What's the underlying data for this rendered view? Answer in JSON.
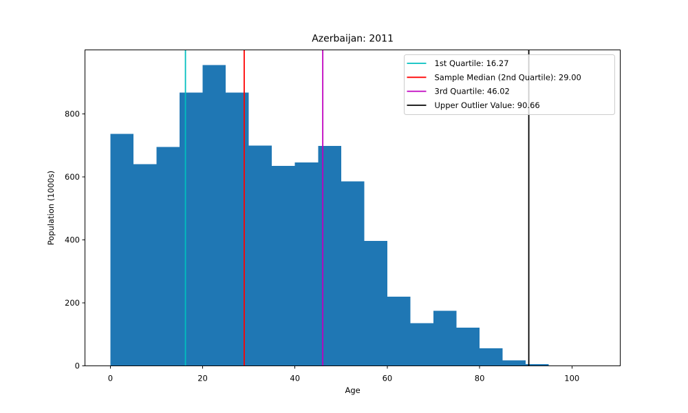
{
  "figure": {
    "background": "#ffffff",
    "text_color": "#000000"
  },
  "chart_data": {
    "type": "bar",
    "subtype": "histogram",
    "title": "Azerbaijan: 2011",
    "xlabel": "Age",
    "ylabel": "Population (1000s)",
    "bar_color": "#1f77b4",
    "bin_edges": [
      0,
      5,
      10,
      15,
      20,
      25,
      30,
      35,
      40,
      45,
      50,
      55,
      60,
      65,
      70,
      75,
      80,
      85,
      90,
      95,
      100
    ],
    "values": [
      737,
      641,
      695,
      868,
      955,
      868,
      700,
      635,
      646,
      698,
      586,
      397,
      220,
      136,
      175,
      121,
      56,
      17,
      5,
      1
    ],
    "xticks": [
      0,
      20,
      40,
      60,
      80,
      100
    ],
    "yticks": [
      0,
      200,
      400,
      600,
      800
    ],
    "xlim": [
      -5.5,
      110.5
    ],
    "ylim": [
      0,
      1003
    ],
    "grid": false,
    "legend_position": "upper right",
    "legend_border_color": "#cccccc",
    "vlines": [
      {
        "name": "q1",
        "x": 16.27,
        "color": "#00bfbf",
        "label": "1st Quartile: 16.27"
      },
      {
        "name": "median",
        "x": 29.0,
        "color": "#ff0000",
        "label": "Sample Median (2nd Quartile): 29.00"
      },
      {
        "name": "q3",
        "x": 46.02,
        "color": "#bf00bf",
        "label": "3rd Quartile: 46.02"
      },
      {
        "name": "outlier",
        "x": 90.66,
        "color": "#000000",
        "label": "Upper Outlier Value: 90.66"
      }
    ]
  }
}
